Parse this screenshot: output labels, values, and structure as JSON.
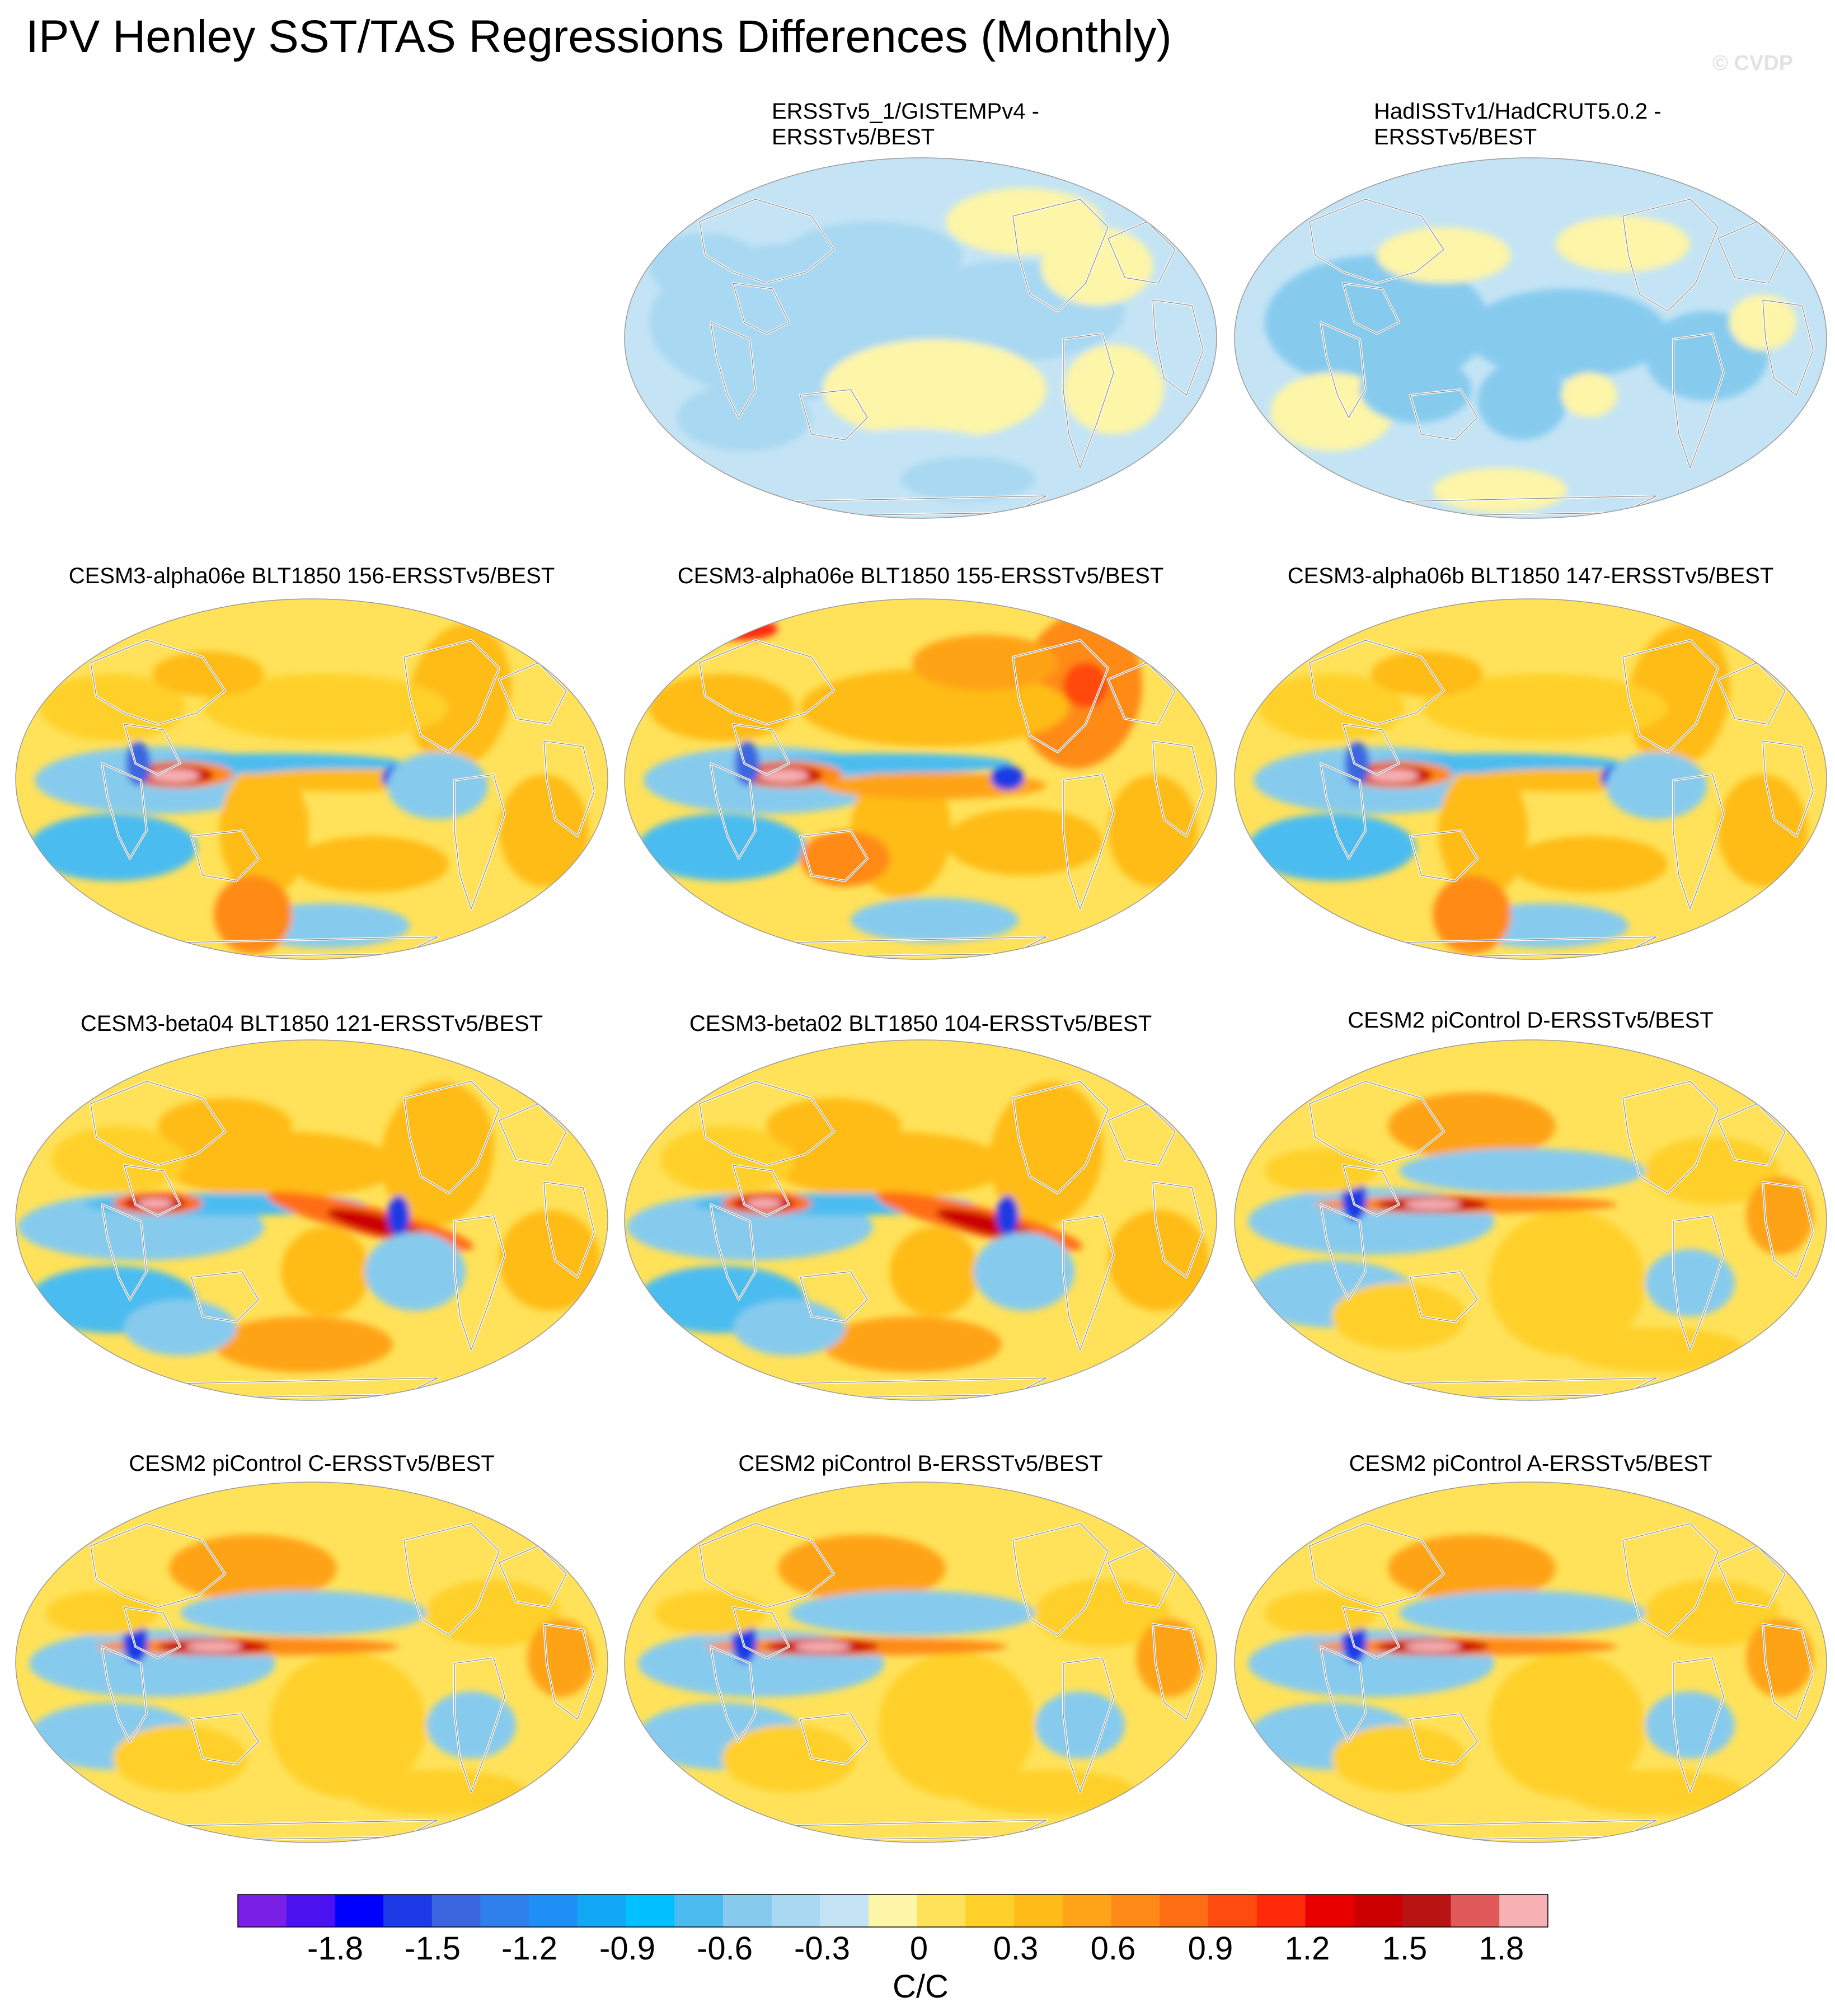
{
  "figure": {
    "title": "IPV Henley SST/TAS Regressions Differences (Monthly)",
    "copyright": "© CVDP"
  },
  "panels": [
    {
      "id": "p1",
      "title": "ERSSTv5_1/GISTEMPv4 -\nERSSTv5/BEST",
      "pattern": "obs_a"
    },
    {
      "id": "p2",
      "title": "HadISSTv1/HadCRUT5.0.2 -\nERSSTv5/BEST",
      "pattern": "obs_b"
    },
    {
      "id": "p3",
      "title": "CESM3-alpha06e BLT1850 156-ERSSTv5/BEST",
      "pattern": "alpha"
    },
    {
      "id": "p4",
      "title": "CESM3-alpha06e BLT1850 155-ERSSTv5/BEST",
      "pattern": "alpha_warm"
    },
    {
      "id": "p5",
      "title": "CESM3-alpha06b BLT1850 147-ERSSTv5/BEST",
      "pattern": "alpha"
    },
    {
      "id": "p6",
      "title": "CESM3-beta04 BLT1850 121-ERSSTv5/BEST",
      "pattern": "beta"
    },
    {
      "id": "p7",
      "title": "CESM3-beta02 BLT1850 104-ERSSTv5/BEST",
      "pattern": "beta"
    },
    {
      "id": "p8",
      "title": "CESM2 piControl D-ERSSTv5/BEST",
      "pattern": "cesm2"
    },
    {
      "id": "p9",
      "title": "CESM2 piControl C-ERSSTv5/BEST",
      "pattern": "cesm2"
    },
    {
      "id": "p10",
      "title": "CESM2 piControl B-ERSSTv5/BEST",
      "pattern": "cesm2"
    },
    {
      "id": "p11",
      "title": "CESM2 piControl A-ERSSTv5/BEST",
      "pattern": "cesm2"
    }
  ],
  "colorbar": {
    "colors": [
      "#7a1fe6",
      "#4b12f0",
      "#0000ff",
      "#1c3ae6",
      "#3a66e0",
      "#2f80ec",
      "#1e90f5",
      "#12a8f5",
      "#00c0ff",
      "#4cbcf0",
      "#86cbee",
      "#a9d8f2",
      "#c4e4f5",
      "#fdf5a8",
      "#ffe25a",
      "#ffd02a",
      "#ffbb18",
      "#ffa318",
      "#ff8a18",
      "#ff6e14",
      "#ff4a10",
      "#ff2a0a",
      "#e80000",
      "#cc0000",
      "#b81414",
      "#e05a5a",
      "#f7b0b4"
    ],
    "tick_labels": [
      "-1.8",
      "-1.5",
      "-1.2",
      "-0.9",
      "-0.6",
      "-0.3",
      "0",
      "0.3",
      "0.6",
      "0.9",
      "1.2",
      "1.5",
      "1.8"
    ],
    "units": "C/C"
  }
}
